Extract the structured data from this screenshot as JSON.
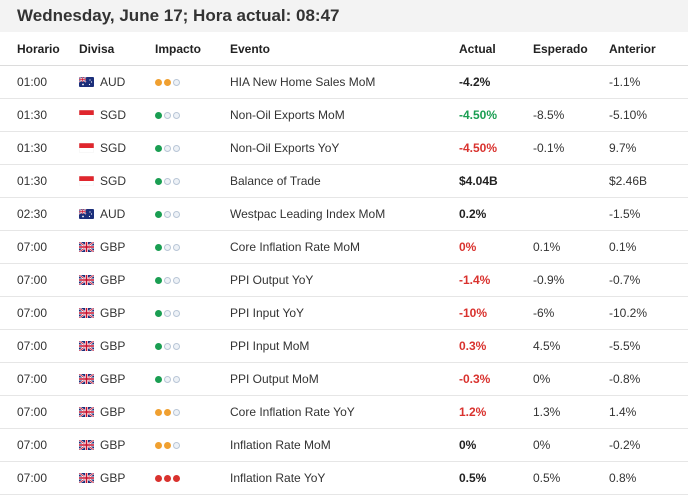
{
  "header": {
    "title": "Wednesday, June 17; Hora actual: 08:47"
  },
  "columns": {
    "time": "Horario",
    "currency": "Divisa",
    "impact": "Impacto",
    "event": "Evento",
    "actual": "Actual",
    "expected": "Esperado",
    "previous": "Anterior"
  },
  "colors": {
    "green": "#1a9e52",
    "orange": "#f0a030",
    "red": "#d9322e"
  },
  "rows": [
    {
      "time": "01:00",
      "flag": "au-flag-icon",
      "currency": "AUD",
      "impact": "medium",
      "event": "HIA New Home Sales MoM",
      "actual": "-4.2%",
      "actual_color": "neu",
      "expected": "",
      "previous": "-1.1%"
    },
    {
      "time": "01:30",
      "flag": "sg-flag-icon",
      "currency": "SGD",
      "impact": "low",
      "event": "Non-Oil Exports MoM",
      "actual": "-4.50%",
      "actual_color": "pos",
      "expected": "-8.5%",
      "previous": "-5.10%"
    },
    {
      "time": "01:30",
      "flag": "sg-flag-icon",
      "currency": "SGD",
      "impact": "low",
      "event": "Non-Oil Exports YoY",
      "actual": "-4.50%",
      "actual_color": "neg",
      "expected": "-0.1%",
      "previous": "9.7%"
    },
    {
      "time": "01:30",
      "flag": "sg-flag-icon",
      "currency": "SGD",
      "impact": "low",
      "event": "Balance of Trade",
      "actual": "$4.04B",
      "actual_color": "neu",
      "expected": "",
      "previous": "$2.46B"
    },
    {
      "time": "02:30",
      "flag": "au-flag-icon",
      "currency": "AUD",
      "impact": "low",
      "event": "Westpac Leading Index MoM",
      "actual": "0.2%",
      "actual_color": "neu",
      "expected": "",
      "previous": "-1.5%"
    },
    {
      "time": "07:00",
      "flag": "gb-flag-icon",
      "currency": "GBP",
      "impact": "low",
      "event": "Core Inflation Rate MoM",
      "actual": "0%",
      "actual_color": "neg",
      "expected": "0.1%",
      "previous": "0.1%"
    },
    {
      "time": "07:00",
      "flag": "gb-flag-icon",
      "currency": "GBP",
      "impact": "low",
      "event": "PPI Output YoY",
      "actual": "-1.4%",
      "actual_color": "neg",
      "expected": "-0.9%",
      "previous": "-0.7%"
    },
    {
      "time": "07:00",
      "flag": "gb-flag-icon",
      "currency": "GBP",
      "impact": "low",
      "event": "PPI Input YoY",
      "actual": "-10%",
      "actual_color": "neg",
      "expected": "-6%",
      "previous": "-10.2%"
    },
    {
      "time": "07:00",
      "flag": "gb-flag-icon",
      "currency": "GBP",
      "impact": "low",
      "event": "PPI Input MoM",
      "actual": "0.3%",
      "actual_color": "neg",
      "expected": "4.5%",
      "previous": "-5.5%"
    },
    {
      "time": "07:00",
      "flag": "gb-flag-icon",
      "currency": "GBP",
      "impact": "low",
      "event": "PPI Output MoM",
      "actual": "-0.3%",
      "actual_color": "neg",
      "expected": "0%",
      "previous": "-0.8%"
    },
    {
      "time": "07:00",
      "flag": "gb-flag-icon",
      "currency": "GBP",
      "impact": "medium",
      "event": "Core Inflation Rate YoY",
      "actual": "1.2%",
      "actual_color": "neg",
      "expected": "1.3%",
      "previous": "1.4%"
    },
    {
      "time": "07:00",
      "flag": "gb-flag-icon",
      "currency": "GBP",
      "impact": "medium",
      "event": "Inflation Rate MoM",
      "actual": "0%",
      "actual_color": "neu",
      "expected": "0%",
      "previous": "-0.2%"
    },
    {
      "time": "07:00",
      "flag": "gb-flag-icon",
      "currency": "GBP",
      "impact": "high",
      "event": "Inflation Rate YoY",
      "actual": "0.5%",
      "actual_color": "neu",
      "expected": "0.5%",
      "previous": "0.8%"
    }
  ]
}
